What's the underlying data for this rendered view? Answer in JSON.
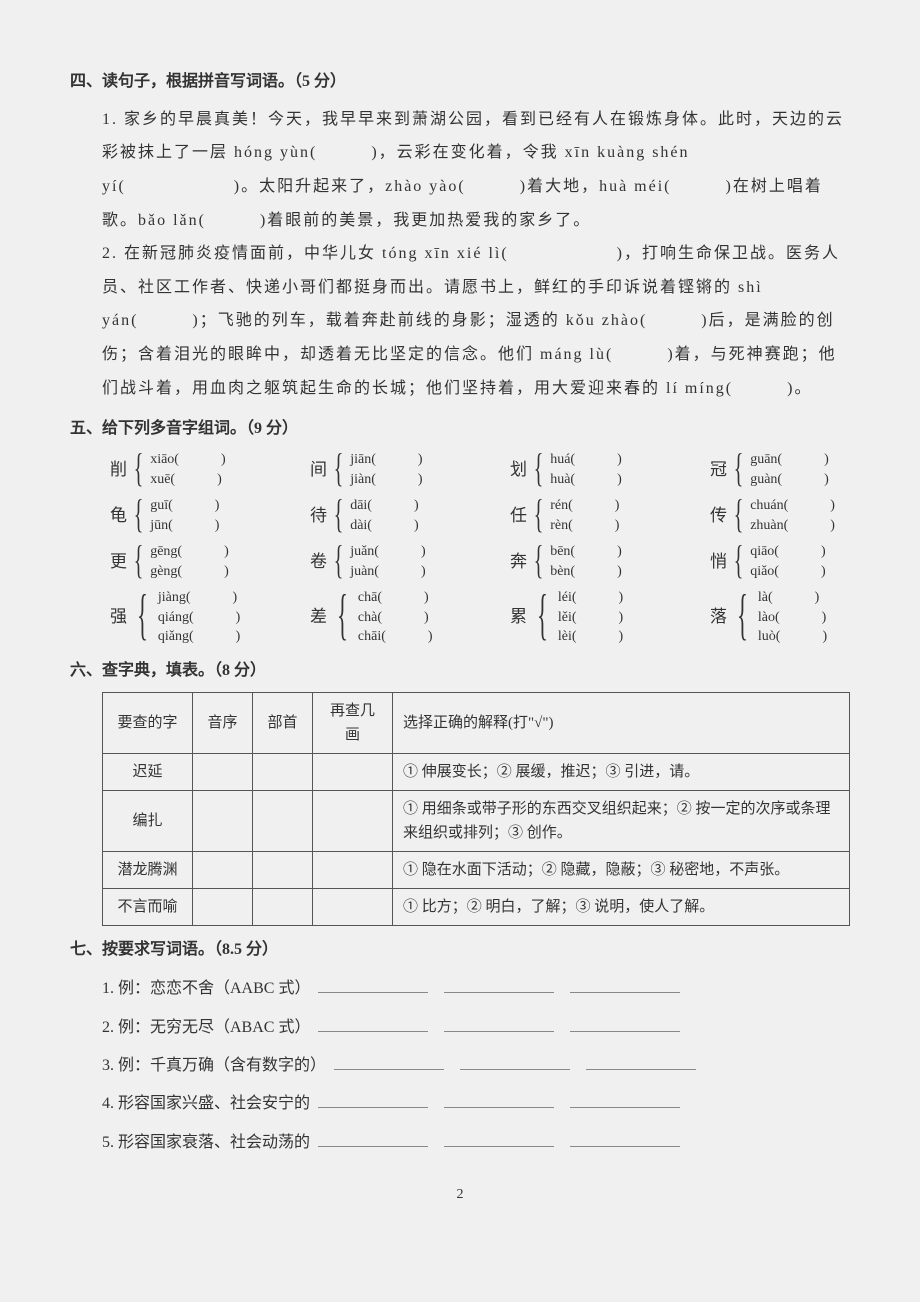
{
  "colors": {
    "text": "#333333",
    "border": "#555555",
    "background": "#f0f0f0",
    "blank_border": "#888888"
  },
  "typography": {
    "body_font_size": 16,
    "line_height": 1.8,
    "letter_spacing": 2,
    "table_font_size": 15,
    "pinyin_font_size": 14
  },
  "section4": {
    "title": "四、读句子，根据拼音写词语。（5 分）",
    "right_note": "",
    "p1_a": "1. 家乡的早晨真美！今天，我早早来到萧湖公园，看到已经有人在锻炼身体。此时，天边的云彩被抹上了一层 hóng yùn(　　　)，云彩在变化着，令我 xīn kuàng shén yí(　　　　　　)。太阳升起来了，zhào yào(　　　)着大地，huà méi(　　　)在树上唱着歌。bǎo lǎn(　　　)着眼前的美景，我更加热爱我的家乡了。",
    "p2_a": "2. 在新冠肺炎疫情面前，中华儿女 tóng xīn xié lì(　　　　　　)，打响生命保卫战。医务人员、社区工作者、快递小哥们都挺身而出。请愿书上，鲜红的手印诉说着铿锵的 shì yán(　　　)；飞驰的列车，载着奔赴前线的身影；湿透的 kǒu zhào(　　　)后，是满脸的创伤；含着泪光的眼眸中，却透着无比坚定的信念。他们 máng lù(　　　)着，与死神赛跑；他们战斗着，用血肉之躯筑起生命的长城；他们坚持着，用大爱迎来春的 lí míng(　　　)。"
  },
  "section5": {
    "title": "五、给下列多音字组词。（9 分）",
    "rows": [
      [
        {
          "hanzi": "削",
          "readings": [
            "xiāo(　　　)",
            "xuē(　　　)"
          ]
        },
        {
          "hanzi": "间",
          "readings": [
            "jiān(　　　)",
            "jiàn(　　　)"
          ]
        },
        {
          "hanzi": "划",
          "readings": [
            "huá(　　　)",
            "huà(　　　)"
          ]
        },
        {
          "hanzi": "冠",
          "readings": [
            "guān(　　　)",
            "guàn(　　　)"
          ]
        }
      ],
      [
        {
          "hanzi": "龟",
          "readings": [
            "guī(　　　)",
            "jūn(　　　)"
          ]
        },
        {
          "hanzi": "待",
          "readings": [
            "dāi(　　　)",
            "dài(　　　)"
          ]
        },
        {
          "hanzi": "任",
          "readings": [
            "rén(　　　)",
            "rèn(　　　)"
          ]
        },
        {
          "hanzi": "传",
          "readings": [
            "chuán(　　　)",
            "zhuàn(　　　)"
          ]
        }
      ],
      [
        {
          "hanzi": "更",
          "readings": [
            "gēng(　　　)",
            "gèng(　　　)"
          ]
        },
        {
          "hanzi": "卷",
          "readings": [
            "juǎn(　　　)",
            "juàn(　　　)"
          ]
        },
        {
          "hanzi": "奔",
          "readings": [
            "bēn(　　　)",
            "bèn(　　　)"
          ]
        },
        {
          "hanzi": "悄",
          "readings": [
            "qiāo(　　　)",
            "qiǎo(　　　)"
          ]
        }
      ],
      [
        {
          "hanzi": "强",
          "readings": [
            "jiàng(　　　)",
            "qiáng(　　　)",
            "qiǎng(　　　)"
          ]
        },
        {
          "hanzi": "差",
          "readings": [
            "chā(　　　)",
            "chà(　　　)",
            "chāi(　　　)"
          ]
        },
        {
          "hanzi": "累",
          "readings": [
            "léi(　　　)",
            "lěi(　　　)",
            "lèi(　　　)"
          ]
        },
        {
          "hanzi": "落",
          "readings": [
            "là(　　　)",
            "lào(　　　)",
            "luò(　　　)"
          ]
        }
      ]
    ]
  },
  "section6": {
    "title": "六、查字典，填表。（8 分）",
    "headers": [
      "要查的字",
      "音序",
      "部首",
      "再查几画",
      "选择正确的解释(打\"√\")"
    ],
    "rows": [
      {
        "word": "迟延",
        "meaning": "① 伸展变长；② 展缓，推迟；③ 引进，请。"
      },
      {
        "word": "编扎",
        "meaning": "① 用细条或带子形的东西交叉组织起来；② 按一定的次序或条理来组织或排列；③ 创作。"
      },
      {
        "word": "潜龙腾渊",
        "meaning": "① 隐在水面下活动；② 隐藏，隐蔽；③ 秘密地，不声张。"
      },
      {
        "word": "不言而喻",
        "meaning": "① 比方；② 明白，了解；③ 说明，使人了解。"
      }
    ]
  },
  "section7": {
    "title": "七、按要求写词语。（8.5 分）",
    "lines": [
      "1. 例：恋恋不舍（AABC 式）",
      "2. 例：无穷无尽（ABAC 式）",
      "3. 例：千真万确（含有数字的）",
      "4. 形容国家兴盛、社会安宁的",
      "5. 形容国家衰落、社会动荡的"
    ]
  },
  "page_number": "2"
}
